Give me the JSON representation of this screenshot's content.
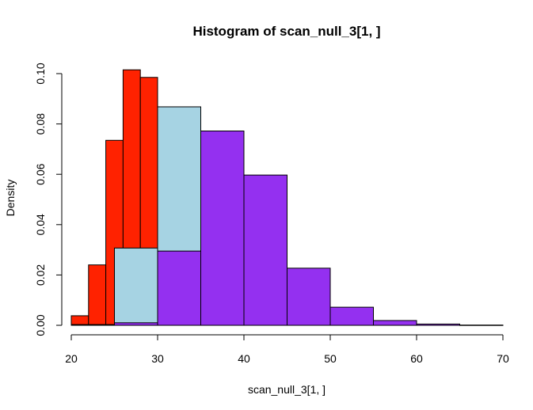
{
  "chart_data": {
    "type": "bar",
    "title": "Histogram of scan_null_3[1, ]",
    "xlabel": "scan_null_3[1, ]",
    "ylabel": "Density",
    "xlim": [
      20,
      70
    ],
    "ylim": [
      0,
      0.1
    ],
    "x_ticks": [
      "20",
      "30",
      "40",
      "50",
      "60",
      "70"
    ],
    "y_ticks": [
      "0.00",
      "0.02",
      "0.04",
      "0.06",
      "0.08",
      "0.10"
    ],
    "grid": false,
    "series": [
      {
        "color": "#ff2200",
        "bins": [
          {
            "x0": 20,
            "x1": 22,
            "density": 0.0038
          },
          {
            "x0": 22,
            "x1": 24,
            "density": 0.024
          },
          {
            "x0": 24,
            "x1": 26,
            "density": 0.0735
          },
          {
            "x0": 26,
            "x1": 28,
            "density": 0.1015
          },
          {
            "x0": 28,
            "x1": 30,
            "density": 0.0985
          }
        ]
      },
      {
        "color": "#a6d3e3",
        "bins": [
          {
            "x0": 20,
            "x1": 25,
            "density": 0.0003
          },
          {
            "x0": 25,
            "x1": 30,
            "density": 0.0307
          },
          {
            "x0": 30,
            "x1": 35,
            "density": 0.0868
          }
        ]
      },
      {
        "color": "#9430f0",
        "bins": [
          {
            "x0": 25,
            "x1": 30,
            "density": 0.001
          },
          {
            "x0": 30,
            "x1": 35,
            "density": 0.0295
          },
          {
            "x0": 35,
            "x1": 40,
            "density": 0.0772
          },
          {
            "x0": 40,
            "x1": 45,
            "density": 0.0597
          },
          {
            "x0": 45,
            "x1": 50,
            "density": 0.0227
          },
          {
            "x0": 50,
            "x1": 55,
            "density": 0.0072
          },
          {
            "x0": 55,
            "x1": 60,
            "density": 0.0019
          },
          {
            "x0": 60,
            "x1": 65,
            "density": 0.0005
          },
          {
            "x0": 65,
            "x1": 70,
            "density": 0.0001
          }
        ]
      }
    ]
  }
}
